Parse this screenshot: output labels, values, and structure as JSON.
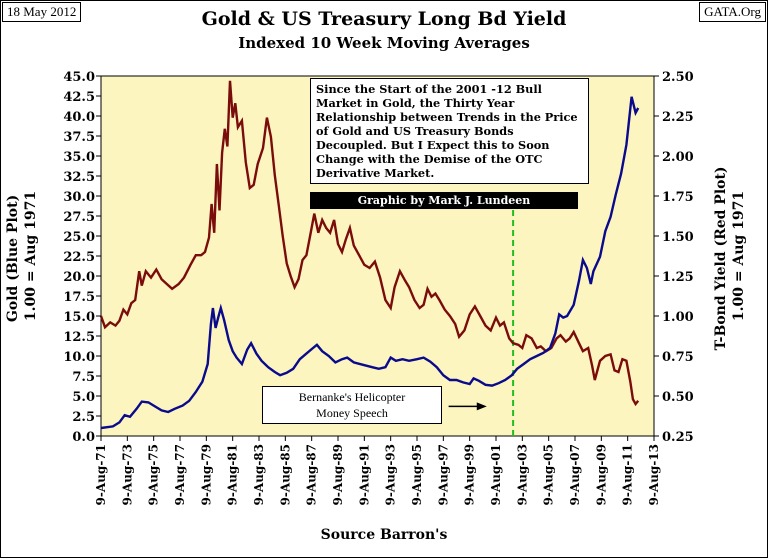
{
  "header": {
    "date": "18 May 2012",
    "site": "GATA.Org",
    "title": "Gold & US Treasury Long Bd Yield",
    "subtitle": "Indexed 10 Week Moving Averages"
  },
  "note": {
    "text": "Since the Start of the 2001 -12 Bull Market in Gold, the Thirty Year Relationship between Trends in the Price of Gold and US Treasury Bonds Decoupled.  But I Expect this to Soon Change with the Demise of the OTC Derivative Market.",
    "credit": "Graphic by Mark J. Lundeen"
  },
  "annotation": {
    "line1": "Bernanke's Helicopter",
    "line2": "Money Speech"
  },
  "source": "Source Barron's",
  "chart_data": {
    "type": "line",
    "title": "Gold & US Treasury Long Bd Yield",
    "subtitle": "Indexed 10 Week Moving Averages",
    "y_left": {
      "label_line1": "Gold (Blue Plot)",
      "label_line2": "1.00 = Aug 1971",
      "range": [
        0,
        45
      ],
      "ticks": [
        "0.0",
        "2.5",
        "5.0",
        "7.5",
        "10.0",
        "12.5",
        "15.0",
        "17.5",
        "20.0",
        "22.5",
        "25.0",
        "27.5",
        "30.0",
        "32.5",
        "35.0",
        "37.5",
        "40.0",
        "42.5",
        "45.0"
      ]
    },
    "y_right": {
      "label_line1": "T-Bond Yield (Red Plot)",
      "label_line2": "1.00 = Aug 1971",
      "range": [
        0.25,
        2.5
      ],
      "ticks": [
        "0.25",
        "0.50",
        "0.75",
        "1.00",
        "1.25",
        "1.50",
        "1.75",
        "2.00",
        "2.25",
        "2.50"
      ]
    },
    "x": {
      "range": [
        1971.6,
        2013.6
      ],
      "ticks": [
        "9-Aug-71",
        "9-Aug-73",
        "9-Aug-75",
        "9-Aug-77",
        "9-Aug-79",
        "9-Aug-81",
        "9-Aug-83",
        "9-Aug-85",
        "9-Aug-87",
        "9-Aug-89",
        "9-Aug-91",
        "9-Aug-93",
        "9-Aug-95",
        "9-Aug-97",
        "9-Aug-99",
        "9-Aug-01",
        "9-Aug-03",
        "9-Aug-05",
        "9-Aug-07",
        "9-Aug-09",
        "9-Aug-11",
        "9-Aug-13"
      ]
    },
    "marker_year": 2002.9,
    "arrow": {
      "from_year": 1998.0,
      "to_year": 2000.9,
      "value_left": 3.7
    },
    "series": [
      {
        "name": "Gold (Blue Plot)",
        "axis": "left",
        "color": "#0a0a8c",
        "points": [
          [
            1971.6,
            1.0
          ],
          [
            1972.5,
            1.2
          ],
          [
            1973.0,
            1.7
          ],
          [
            1973.4,
            2.6
          ],
          [
            1973.8,
            2.4
          ],
          [
            1974.3,
            3.4
          ],
          [
            1974.7,
            4.3
          ],
          [
            1975.2,
            4.2
          ],
          [
            1975.6,
            3.8
          ],
          [
            1976.2,
            3.2
          ],
          [
            1976.7,
            3.0
          ],
          [
            1977.2,
            3.4
          ],
          [
            1977.8,
            3.8
          ],
          [
            1978.3,
            4.4
          ],
          [
            1978.8,
            5.5
          ],
          [
            1979.3,
            6.8
          ],
          [
            1979.7,
            9.0
          ],
          [
            1979.95,
            14.0
          ],
          [
            1980.1,
            16.0
          ],
          [
            1980.3,
            13.5
          ],
          [
            1980.5,
            14.8
          ],
          [
            1980.7,
            16.0
          ],
          [
            1980.95,
            14.5
          ],
          [
            1981.3,
            12.0
          ],
          [
            1981.6,
            10.6
          ],
          [
            1981.9,
            9.8
          ],
          [
            1982.3,
            9.0
          ],
          [
            1982.7,
            10.8
          ],
          [
            1983.0,
            11.6
          ],
          [
            1983.4,
            10.3
          ],
          [
            1983.8,
            9.4
          ],
          [
            1984.3,
            8.6
          ],
          [
            1984.8,
            8.0
          ],
          [
            1985.2,
            7.6
          ],
          [
            1985.7,
            7.9
          ],
          [
            1986.2,
            8.4
          ],
          [
            1986.7,
            9.6
          ],
          [
            1987.2,
            10.3
          ],
          [
            1987.7,
            11.0
          ],
          [
            1988.0,
            11.4
          ],
          [
            1988.4,
            10.6
          ],
          [
            1988.9,
            10.0
          ],
          [
            1989.4,
            9.2
          ],
          [
            1989.9,
            9.6
          ],
          [
            1990.3,
            9.8
          ],
          [
            1990.8,
            9.2
          ],
          [
            1991.5,
            8.9
          ],
          [
            1992.2,
            8.6
          ],
          [
            1992.7,
            8.4
          ],
          [
            1993.2,
            8.6
          ],
          [
            1993.6,
            9.8
          ],
          [
            1994.0,
            9.4
          ],
          [
            1994.5,
            9.6
          ],
          [
            1995.0,
            9.4
          ],
          [
            1995.6,
            9.6
          ],
          [
            1996.1,
            9.8
          ],
          [
            1996.6,
            9.3
          ],
          [
            1997.1,
            8.6
          ],
          [
            1997.6,
            7.6
          ],
          [
            1998.1,
            7.0
          ],
          [
            1998.6,
            7.0
          ],
          [
            1999.1,
            6.7
          ],
          [
            1999.6,
            6.5
          ],
          [
            1999.9,
            7.2
          ],
          [
            2000.3,
            6.9
          ],
          [
            2000.8,
            6.4
          ],
          [
            2001.3,
            6.3
          ],
          [
            2001.8,
            6.6
          ],
          [
            2002.3,
            7.0
          ],
          [
            2002.8,
            7.6
          ],
          [
            2003.2,
            8.4
          ],
          [
            2003.7,
            9.0
          ],
          [
            2004.2,
            9.6
          ],
          [
            2004.7,
            10.0
          ],
          [
            2005.2,
            10.4
          ],
          [
            2005.7,
            11.0
          ],
          [
            2006.1,
            12.8
          ],
          [
            2006.4,
            15.2
          ],
          [
            2006.7,
            14.8
          ],
          [
            2007.0,
            15.0
          ],
          [
            2007.5,
            16.4
          ],
          [
            2007.9,
            19.4
          ],
          [
            2008.2,
            22.0
          ],
          [
            2008.5,
            21.0
          ],
          [
            2008.8,
            19.0
          ],
          [
            2009.0,
            20.6
          ],
          [
            2009.5,
            22.4
          ],
          [
            2009.9,
            25.6
          ],
          [
            2010.3,
            27.4
          ],
          [
            2010.7,
            30.2
          ],
          [
            2011.1,
            32.8
          ],
          [
            2011.5,
            36.4
          ],
          [
            2011.9,
            42.4
          ],
          [
            2012.2,
            40.4
          ],
          [
            2012.4,
            41.0
          ]
        ]
      },
      {
        "name": "T-Bond Yield (Red Plot)",
        "axis": "right",
        "color": "#7a0c0c",
        "points": [
          [
            1971.6,
            1.0
          ],
          [
            1971.9,
            0.93
          ],
          [
            1972.3,
            0.96
          ],
          [
            1972.7,
            0.94
          ],
          [
            1973.0,
            0.97
          ],
          [
            1973.3,
            1.04
          ],
          [
            1973.6,
            1.01
          ],
          [
            1973.9,
            1.08
          ],
          [
            1974.2,
            1.1
          ],
          [
            1974.5,
            1.28
          ],
          [
            1974.7,
            1.19
          ],
          [
            1975.0,
            1.28
          ],
          [
            1975.4,
            1.24
          ],
          [
            1975.8,
            1.29
          ],
          [
            1976.2,
            1.23
          ],
          [
            1976.6,
            1.2
          ],
          [
            1977.0,
            1.17
          ],
          [
            1977.5,
            1.2
          ],
          [
            1977.9,
            1.24
          ],
          [
            1978.4,
            1.32
          ],
          [
            1978.8,
            1.38
          ],
          [
            1979.2,
            1.38
          ],
          [
            1979.5,
            1.4
          ],
          [
            1979.8,
            1.49
          ],
          [
            1980.0,
            1.7
          ],
          [
            1980.2,
            1.52
          ],
          [
            1980.4,
            1.95
          ],
          [
            1980.6,
            1.66
          ],
          [
            1980.8,
            2.02
          ],
          [
            1981.0,
            2.17
          ],
          [
            1981.2,
            2.06
          ],
          [
            1981.4,
            2.47
          ],
          [
            1981.6,
            2.24
          ],
          [
            1981.8,
            2.33
          ],
          [
            1982.0,
            2.18
          ],
          [
            1982.3,
            2.22
          ],
          [
            1982.6,
            1.96
          ],
          [
            1982.9,
            1.8
          ],
          [
            1983.2,
            1.82
          ],
          [
            1983.5,
            1.95
          ],
          [
            1983.9,
            2.05
          ],
          [
            1984.2,
            2.24
          ],
          [
            1984.5,
            2.12
          ],
          [
            1984.8,
            1.88
          ],
          [
            1985.1,
            1.69
          ],
          [
            1985.4,
            1.5
          ],
          [
            1985.7,
            1.33
          ],
          [
            1986.0,
            1.25
          ],
          [
            1986.3,
            1.18
          ],
          [
            1986.6,
            1.23
          ],
          [
            1986.9,
            1.35
          ],
          [
            1987.2,
            1.38
          ],
          [
            1987.5,
            1.51
          ],
          [
            1987.8,
            1.64
          ],
          [
            1988.1,
            1.52
          ],
          [
            1988.4,
            1.6
          ],
          [
            1988.7,
            1.55
          ],
          [
            1989.0,
            1.52
          ],
          [
            1989.3,
            1.6
          ],
          [
            1989.6,
            1.45
          ],
          [
            1989.9,
            1.4
          ],
          [
            1990.2,
            1.48
          ],
          [
            1990.5,
            1.55
          ],
          [
            1990.8,
            1.44
          ],
          [
            1991.2,
            1.38
          ],
          [
            1991.6,
            1.32
          ],
          [
            1992.0,
            1.3
          ],
          [
            1992.4,
            1.34
          ],
          [
            1992.8,
            1.24
          ],
          [
            1993.2,
            1.1
          ],
          [
            1993.6,
            1.05
          ],
          [
            1993.9,
            1.18
          ],
          [
            1994.3,
            1.28
          ],
          [
            1994.7,
            1.22
          ],
          [
            1995.0,
            1.18
          ],
          [
            1995.4,
            1.1
          ],
          [
            1995.8,
            1.05
          ],
          [
            1996.1,
            1.07
          ],
          [
            1996.4,
            1.17
          ],
          [
            1996.7,
            1.12
          ],
          [
            1997.0,
            1.14
          ],
          [
            1997.3,
            1.1
          ],
          [
            1997.7,
            1.04
          ],
          [
            1998.1,
            1.0
          ],
          [
            1998.5,
            0.95
          ],
          [
            1998.8,
            0.87
          ],
          [
            1999.2,
            0.91
          ],
          [
            1999.6,
            1.01
          ],
          [
            2000.0,
            1.06
          ],
          [
            2000.4,
            1.0
          ],
          [
            2000.8,
            0.94
          ],
          [
            2001.2,
            0.91
          ],
          [
            2001.6,
            0.99
          ],
          [
            2001.9,
            0.94
          ],
          [
            2002.2,
            0.96
          ],
          [
            2002.6,
            0.86
          ],
          [
            2002.9,
            0.83
          ],
          [
            2003.3,
            0.82
          ],
          [
            2003.6,
            0.8
          ],
          [
            2003.9,
            0.88
          ],
          [
            2004.3,
            0.86
          ],
          [
            2004.7,
            0.8
          ],
          [
            2005.0,
            0.81
          ],
          [
            2005.4,
            0.78
          ],
          [
            2005.8,
            0.8
          ],
          [
            2006.2,
            0.86
          ],
          [
            2006.5,
            0.88
          ],
          [
            2006.9,
            0.84
          ],
          [
            2007.2,
            0.86
          ],
          [
            2007.5,
            0.9
          ],
          [
            2007.9,
            0.83
          ],
          [
            2008.2,
            0.78
          ],
          [
            2008.6,
            0.8
          ],
          [
            2008.9,
            0.69
          ],
          [
            2009.1,
            0.6
          ],
          [
            2009.5,
            0.72
          ],
          [
            2009.9,
            0.75
          ],
          [
            2010.3,
            0.76
          ],
          [
            2010.6,
            0.66
          ],
          [
            2010.9,
            0.65
          ],
          [
            2011.2,
            0.73
          ],
          [
            2011.5,
            0.72
          ],
          [
            2011.8,
            0.59
          ],
          [
            2012.0,
            0.48
          ],
          [
            2012.2,
            0.45
          ],
          [
            2012.4,
            0.47
          ]
        ]
      }
    ]
  }
}
